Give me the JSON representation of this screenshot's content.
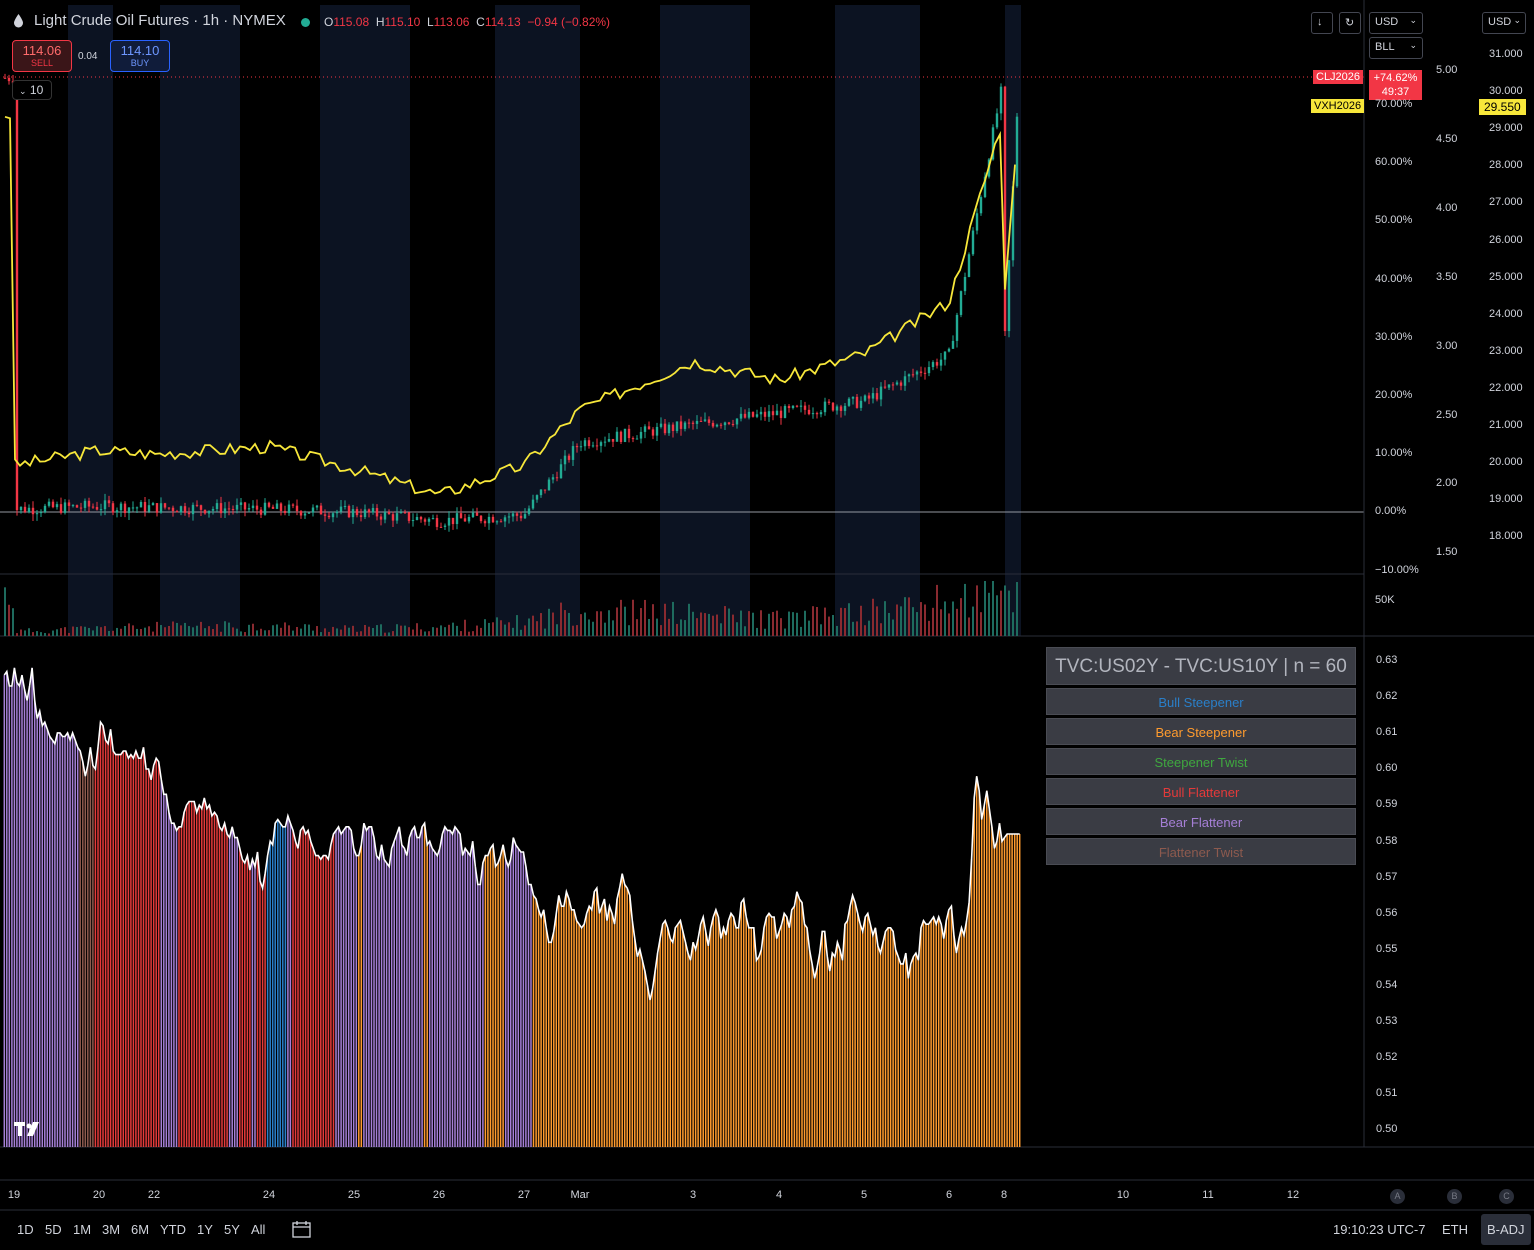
{
  "header": {
    "title": "Light Crude Oil Futures · 1h · NYMEX",
    "ohlc": [
      {
        "k": "O",
        "v": "115.08"
      },
      {
        "k": "H",
        "v": "115.10"
      },
      {
        "k": "L",
        "v": "113.06"
      },
      {
        "k": "C",
        "v": "114.13"
      }
    ],
    "change": "−0.94 (−0.82%)"
  },
  "trade": {
    "sell_price": "114.06",
    "sell_label": "SELL",
    "spread": "0.04",
    "buy_price": "114.10",
    "buy_label": "BUY",
    "lots": "10"
  },
  "controls": {
    "currency_main": "USD",
    "unit_main": "BLL",
    "currency_right": "USD"
  },
  "badges": {
    "clj_symbol": "CLJ2026",
    "clj_change": "+74.62%",
    "clj_timer": "49:37",
    "vx_symbol": "VXH2026",
    "vx_price": "29.550"
  },
  "colors": {
    "up": "#22ab94",
    "down": "#f23645",
    "overlay": "#f7e73a",
    "bull_steepener": "#2a7fc9",
    "bear_steepener": "#ff9b2e",
    "steepener_twist": "#3fa83f",
    "bull_flattener": "#e43a3a",
    "bear_flattener": "#a57fd6",
    "flattener_twist": "#8d5a4e"
  },
  "axes": {
    "pct_ticks": [
      "70.00%",
      "60.00%",
      "50.00%",
      "40.00%",
      "30.00%",
      "20.00%",
      "10.00%",
      "0.00%",
      "−10.00%"
    ],
    "mid_ticks": [
      "5.00",
      "4.50",
      "4.00",
      "3.50",
      "3.00",
      "2.50",
      "2.00",
      "1.50"
    ],
    "right_ticks": [
      "31.000",
      "30.000",
      "29.000",
      "28.000",
      "27.000",
      "26.000",
      "25.000",
      "24.000",
      "23.000",
      "22.000",
      "21.000",
      "20.000",
      "19.000",
      "18.000"
    ],
    "volume_tick": "50K",
    "lower_ticks": [
      "0.63",
      "0.62",
      "0.61",
      "0.60",
      "0.59",
      "0.58",
      "0.57",
      "0.56",
      "0.55",
      "0.54",
      "0.53",
      "0.52",
      "0.51",
      "0.50"
    ],
    "x_ticks": [
      "19",
      "20",
      "22",
      "24",
      "25",
      "26",
      "27",
      "Mar",
      "3",
      "4",
      "5",
      "6",
      "8",
      "10",
      "11",
      "12"
    ]
  },
  "legend": {
    "title": "TVC:US02Y - TVC:US10Y | n = 60",
    "items": [
      {
        "label": "Bull Steepener",
        "color": "#2a7fc9"
      },
      {
        "label": "Bear Steepener",
        "color": "#ff9b2e"
      },
      {
        "label": "Steepener Twist",
        "color": "#3fa83f"
      },
      {
        "label": "Bull Flattener",
        "color": "#e43a3a"
      },
      {
        "label": "Bear Flattener",
        "color": "#a57fd6"
      },
      {
        "label": "Flattener Twist",
        "color": "#8d5a4e"
      }
    ]
  },
  "scale_buttons": [
    "A",
    "B",
    "C"
  ],
  "footer": {
    "ranges": [
      "1D",
      "5D",
      "1M",
      "3M",
      "6M",
      "YTD",
      "1Y",
      "5Y",
      "All"
    ],
    "time": "19:10:23 UTC-7",
    "session": "ETH",
    "adj": "B-ADJ"
  },
  "chart_data": [
    {
      "type": "line",
      "name": "CLJ2026 % change (candles) vs VXH2026 overlay",
      "x": [
        "19",
        "20",
        "22",
        "24",
        "25",
        "26",
        "27",
        "Mar",
        "3",
        "4",
        "5",
        "6",
        "8"
      ],
      "series": [
        {
          "name": "CLJ2026",
          "values": [
            0.5,
            1.0,
            0.8,
            0.5,
            0.0,
            -1.5,
            -0.5,
            12,
            15,
            17,
            19,
            27,
            74.6
          ],
          "unit": "%"
        },
        {
          "name": "VXH2026",
          "values": [
            20.1,
            20.5,
            20.4,
            20.6,
            20.0,
            19.3,
            20.1,
            21.6,
            22.9,
            22.4,
            23.1,
            24.5,
            29.55
          ]
        }
      ],
      "ylim": [
        -10,
        75
      ]
    },
    {
      "type": "bar",
      "name": "Volume",
      "values": [
        6,
        10,
        12,
        13,
        9,
        12,
        18,
        35,
        28,
        22,
        30,
        45,
        55
      ]
    },
    {
      "type": "bar",
      "name": "TVC:US02Y - TVC:US10Y | n = 60",
      "ylim": [
        0.495,
        0.635
      ],
      "values": [
        0.626,
        0.627,
        0.623,
        0.623,
        0.628,
        0.624,
        0.623,
        0.626,
        0.622,
        0.619,
        0.623,
        0.628,
        0.619,
        0.614,
        0.616,
        0.612,
        0.613,
        0.611,
        0.609,
        0.608,
        0.607,
        0.61,
        0.61,
        0.609,
        0.609,
        0.61,
        0.608,
        0.61,
        0.608,
        0.606,
        0.605,
        0.602,
        0.598,
        0.601,
        0.606,
        0.601,
        0.6,
        0.606,
        0.613,
        0.612,
        0.608,
        0.607,
        0.611,
        0.605,
        0.604,
        0.604,
        0.604,
        0.605,
        0.605,
        0.603,
        0.604,
        0.603,
        0.605,
        0.603,
        0.603,
        0.606,
        0.6,
        0.6,
        0.597,
        0.601,
        0.603,
        0.602,
        0.597,
        0.593,
        0.593,
        0.588,
        0.585,
        0.585,
        0.583,
        0.584,
        0.584,
        0.588,
        0.59,
        0.591,
        0.591,
        0.591,
        0.588,
        0.59,
        0.589,
        0.592,
        0.589,
        0.59,
        0.587,
        0.588,
        0.587,
        0.584,
        0.583,
        0.585,
        0.582,
        0.581,
        0.584,
        0.581,
        0.581,
        0.578,
        0.575,
        0.574,
        0.576,
        0.572,
        0.575,
        0.573,
        0.577,
        0.569,
        0.567,
        0.571,
        0.576,
        0.58,
        0.579,
        0.585,
        0.586,
        0.585,
        0.584,
        0.584,
        0.587,
        0.585,
        0.583,
        0.58,
        0.578,
        0.583,
        0.584,
        0.582,
        0.583,
        0.58,
        0.578,
        0.576,
        0.576,
        0.575,
        0.576,
        0.576,
        0.575,
        0.579,
        0.582,
        0.583,
        0.584,
        0.582,
        0.583,
        0.584,
        0.584,
        0.583,
        0.578,
        0.576,
        0.576,
        0.579,
        0.585,
        0.583,
        0.584,
        0.584,
        0.581,
        0.576,
        0.575,
        0.579,
        0.575,
        0.574,
        0.573,
        0.578,
        0.58,
        0.582,
        0.584,
        0.579,
        0.578,
        0.576,
        0.581,
        0.583,
        0.584,
        0.581,
        0.581,
        0.584,
        0.585,
        0.579,
        0.58,
        0.578,
        0.577,
        0.576,
        0.578,
        0.582,
        0.584,
        0.583,
        0.583,
        0.582,
        0.584,
        0.583,
        0.582,
        0.576,
        0.578,
        0.577,
        0.576,
        0.58,
        0.573,
        0.568,
        0.568,
        0.574,
        0.576,
        0.576,
        0.578,
        0.579,
        0.573,
        0.574,
        0.576,
        0.579,
        0.575,
        0.573,
        0.575,
        0.581,
        0.579,
        0.578,
        0.577,
        0.577,
        0.573,
        0.568,
        0.568,
        0.565,
        0.564,
        0.561,
        0.559,
        0.561,
        0.556,
        0.552,
        0.552,
        0.555,
        0.56,
        0.565,
        0.562,
        0.562,
        0.566,
        0.564,
        0.561,
        0.561,
        0.558,
        0.557,
        0.556,
        0.557,
        0.56,
        0.562,
        0.561,
        0.566,
        0.567,
        0.56,
        0.562,
        0.564,
        0.558,
        0.562,
        0.56,
        0.557,
        0.564,
        0.567,
        0.571,
        0.568,
        0.567,
        0.565,
        0.558,
        0.553,
        0.548,
        0.55,
        0.547,
        0.544,
        0.54,
        0.536,
        0.539,
        0.544,
        0.549,
        0.553,
        0.557,
        0.558,
        0.556,
        0.553,
        0.552,
        0.556,
        0.557,
        0.558,
        0.555,
        0.552,
        0.549,
        0.547,
        0.552,
        0.55,
        0.553,
        0.557,
        0.559,
        0.555,
        0.551,
        0.556,
        0.559,
        0.561,
        0.559,
        0.553,
        0.556,
        0.554,
        0.558,
        0.56,
        0.559,
        0.556,
        0.556,
        0.563,
        0.564,
        0.559,
        0.556,
        0.556,
        0.556,
        0.547,
        0.548,
        0.55,
        0.556,
        0.559,
        0.56,
        0.559,
        0.559,
        0.553,
        0.555,
        0.557,
        0.56,
        0.559,
        0.556,
        0.561,
        0.562,
        0.566,
        0.564,
        0.563,
        0.557,
        0.556,
        0.55,
        0.546,
        0.542,
        0.545,
        0.549,
        0.555,
        0.555,
        0.548,
        0.544,
        0.549,
        0.548,
        0.552,
        0.55,
        0.547,
        0.557,
        0.558,
        0.562,
        0.565,
        0.563,
        0.56,
        0.557,
        0.555,
        0.559,
        0.56,
        0.557,
        0.554,
        0.556,
        0.551,
        0.549,
        0.552,
        0.555,
        0.556,
        0.556,
        0.555,
        0.55,
        0.548,
        0.546,
        0.546,
        0.549,
        0.542,
        0.546,
        0.548,
        0.549,
        0.547,
        0.556,
        0.558,
        0.557,
        0.557,
        0.558,
        0.559,
        0.557,
        0.559,
        0.557,
        0.553,
        0.558,
        0.561,
        0.562,
        0.554,
        0.549,
        0.553,
        0.556,
        0.554,
        0.558,
        0.563,
        0.575,
        0.592,
        0.598,
        0.594,
        0.586,
        0.59,
        0.594,
        0.589,
        0.584,
        0.578,
        0.58,
        0.585,
        0.58,
        0.581,
        0.582,
        0.582,
        0.582,
        0.582,
        0.582,
        0.582
      ],
      "regimes": "B*30,T*6,R*26,P*7,R*20,P*4,R*5,P*2,R*4,S*8,P*2,R*11,R*6,P*9,O*2,P*24,O*2,P*22,O*8,P*6,P*5,O*16"
    }
  ]
}
